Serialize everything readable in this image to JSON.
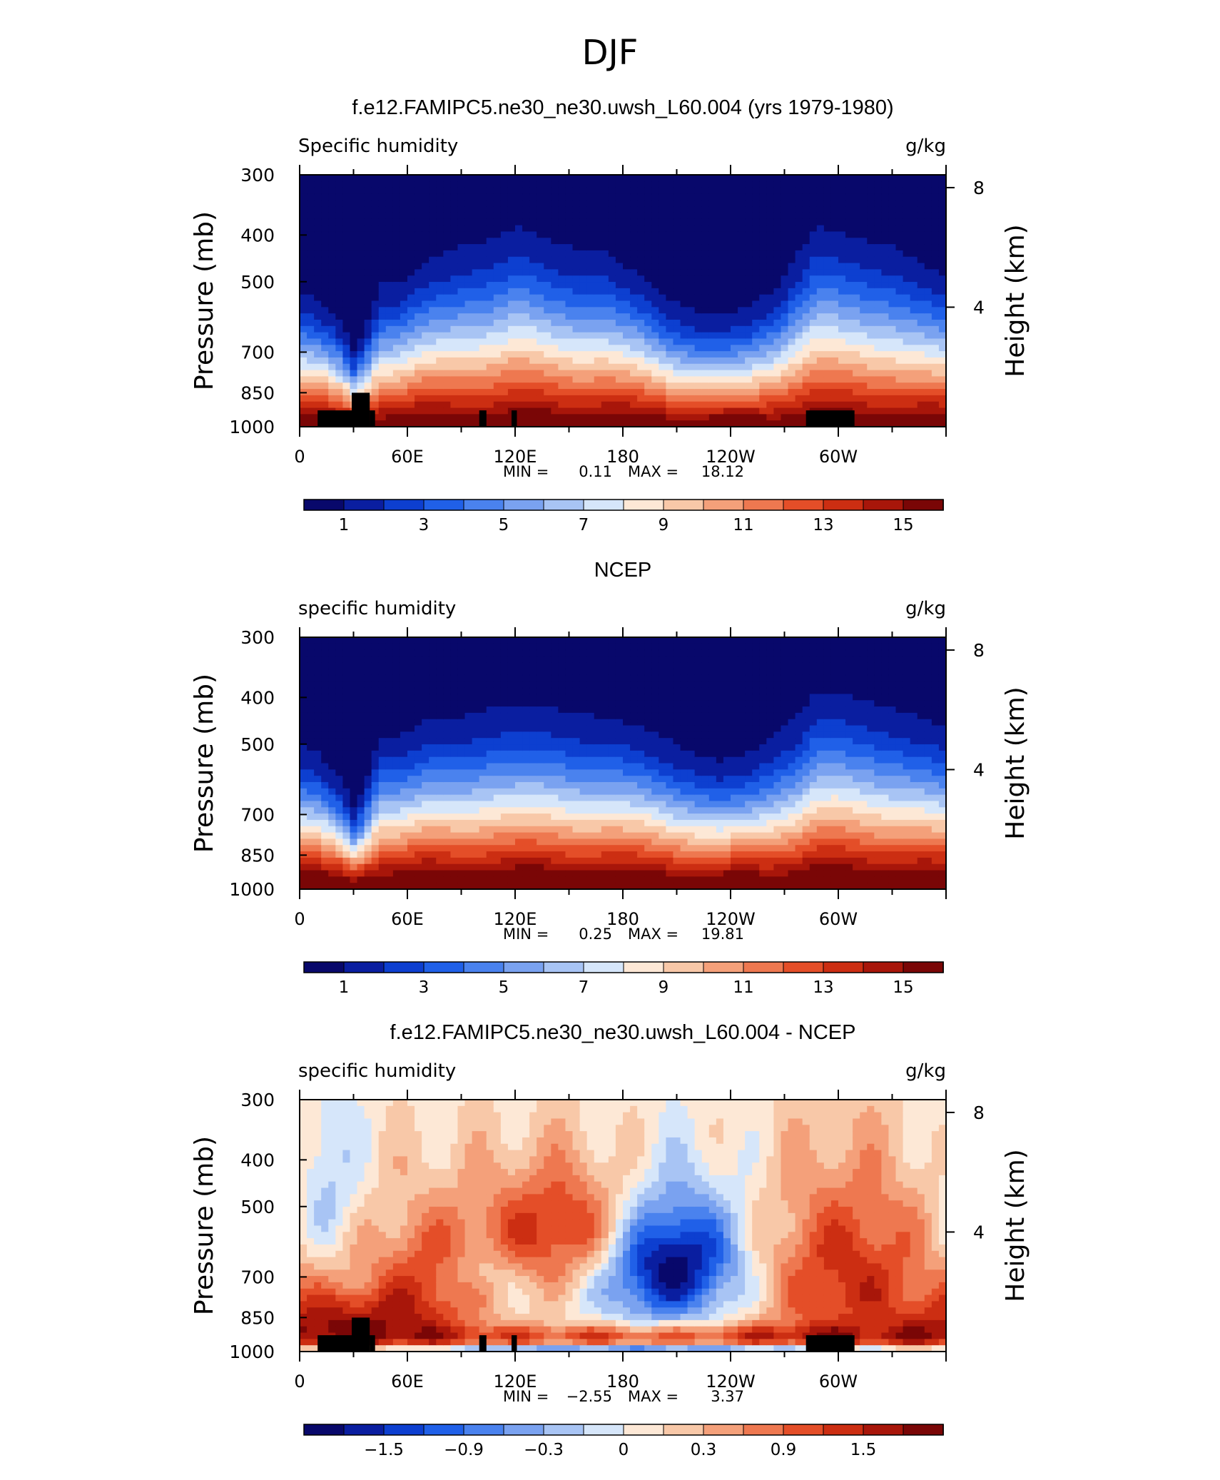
{
  "figure": {
    "title": "DJF"
  },
  "chart_data": [
    {
      "type": "heatmap",
      "title": "f.e12.FAMIPC5.ne30_ne30.uwsh_L60.004 (yrs 1979-1980)",
      "left_label": "Specific humidity",
      "units": "g/kg",
      "ylabel": "Pressure (mb)",
      "ylabel_right": "Height (km)",
      "y_ticks": [
        "300",
        "400",
        "500",
        "700",
        "850",
        "1000"
      ],
      "y_tick_values": [
        300,
        400,
        500,
        700,
        850,
        1000
      ],
      "y_right_ticks": [
        "8",
        "4"
      ],
      "y_right_values": [
        8,
        4
      ],
      "x_ticks": [
        "0",
        "60E",
        "120E",
        "180",
        "120W",
        "60W"
      ],
      "x_tick_values": [
        0,
        60,
        120,
        180,
        240,
        300
      ],
      "xlim": [
        0,
        360
      ],
      "ylim": [
        1000,
        300
      ],
      "stats": {
        "min_label": "MIN =",
        "min": "0.11",
        "max_label": "MAX =",
        "max": "18.12"
      },
      "colorbar_labels": [
        "1",
        "3",
        "5",
        "7",
        "9",
        "11",
        "13",
        "15"
      ],
      "colorbar_range": [
        0,
        16
      ],
      "levels_max": 16,
      "field_profile": {
        "lon": [
          0,
          10,
          20,
          25,
          30,
          35,
          40,
          45,
          55,
          70,
          90,
          100,
          110,
          120,
          130,
          140,
          150,
          170,
          190,
          205,
          220,
          235,
          250,
          265,
          280,
          285,
          290,
          300,
          310,
          330,
          345,
          360
        ],
        "moist_top": [
          540,
          560,
          600,
          640,
          700,
          660,
          580,
          520,
          520,
          470,
          440,
          430,
          420,
          400,
          410,
          430,
          440,
          450,
          500,
          560,
          590,
          600,
          580,
          530,
          440,
          410,
          400,
          410,
          420,
          440,
          470,
          500
        ],
        "scale": 1.0
      },
      "diff_field": null
    },
    {
      "type": "heatmap",
      "title": "NCEP",
      "left_label": "specific humidity",
      "units": "g/kg",
      "ylabel": "Pressure (mb)",
      "ylabel_right": "Height (km)",
      "y_ticks": [
        "300",
        "400",
        "500",
        "700",
        "850",
        "1000"
      ],
      "y_tick_values": [
        300,
        400,
        500,
        700,
        850,
        1000
      ],
      "y_right_ticks": [
        "8",
        "4"
      ],
      "y_right_values": [
        8,
        4
      ],
      "x_ticks": [
        "0",
        "60E",
        "120E",
        "180",
        "120W",
        "60W"
      ],
      "x_tick_values": [
        0,
        60,
        120,
        180,
        240,
        300
      ],
      "xlim": [
        0,
        360
      ],
      "ylim": [
        1000,
        300
      ],
      "stats": {
        "min_label": "MIN =",
        "min": "0.25",
        "max_label": "MAX =",
        "max": "19.81"
      },
      "colorbar_labels": [
        "1",
        "3",
        "5",
        "7",
        "9",
        "11",
        "13",
        "15"
      ],
      "colorbar_range": [
        0,
        16
      ],
      "levels_max": 16,
      "field_profile": {
        "lon": [
          0,
          10,
          20,
          25,
          30,
          35,
          40,
          45,
          55,
          70,
          90,
          100,
          110,
          120,
          130,
          140,
          150,
          170,
          190,
          205,
          220,
          235,
          250,
          265,
          280,
          285,
          290,
          300,
          310,
          330,
          345,
          360
        ],
        "moist_top": [
          520,
          540,
          590,
          630,
          690,
          640,
          560,
          500,
          500,
          470,
          460,
          450,
          440,
          440,
          440,
          440,
          450,
          460,
          480,
          510,
          540,
          560,
          540,
          500,
          450,
          420,
          410,
          410,
          420,
          440,
          460,
          480
        ],
        "scale": 1.05
      },
      "diff_field": null
    },
    {
      "type": "heatmap",
      "title": "f.e12.FAMIPC5.ne30_ne30.uwsh_L60.004 - NCEP",
      "left_label": "specific humidity",
      "units": "g/kg",
      "ylabel": "Pressure (mb)",
      "ylabel_right": "Height (km)",
      "y_ticks": [
        "300",
        "400",
        "500",
        "700",
        "850",
        "1000"
      ],
      "y_tick_values": [
        300,
        400,
        500,
        700,
        850,
        1000
      ],
      "y_right_ticks": [
        "8",
        "4"
      ],
      "y_right_values": [
        8,
        4
      ],
      "x_ticks": [
        "0",
        "60E",
        "120E",
        "180",
        "120W",
        "60W"
      ],
      "x_tick_values": [
        0,
        60,
        120,
        180,
        240,
        300
      ],
      "xlim": [
        0,
        360
      ],
      "ylim": [
        1000,
        300
      ],
      "stats": {
        "min_label": "MIN =",
        "min": "−2.55",
        "max_label": "MAX =",
        "max": "3.37"
      },
      "colorbar_labels": [
        "−1.5",
        "−0.9",
        "−0.3",
        "0",
        "0.3",
        "0.9",
        "1.5"
      ],
      "colorbar_range": [
        -2.1,
        2.1
      ],
      "levels_max": 2.1,
      "field_profile": null,
      "diff_field": {
        "blobs": [
          {
            "lon": 205,
            "p": 650,
            "amp": -2.4,
            "sx": 28,
            "sp": 140
          },
          {
            "lon": 150,
            "p": 560,
            "amp": 1.4,
            "sx": 35,
            "sp": 120
          },
          {
            "lon": 70,
            "p": 750,
            "amp": 1.1,
            "sx": 25,
            "sp": 180
          },
          {
            "lon": 305,
            "p": 700,
            "amp": 1.3,
            "sx": 35,
            "sp": 220
          },
          {
            "lon": 200,
            "p": 930,
            "amp": 1.2,
            "sx": 120,
            "sp": 40
          },
          {
            "lon": 20,
            "p": 880,
            "amp": 1.4,
            "sx": 30,
            "sp": 100
          },
          {
            "lon": 100,
            "p": 690,
            "amp": -0.5,
            "sx": 15,
            "sp": 60
          },
          {
            "lon": 15,
            "p": 450,
            "amp": -0.6,
            "sx": 12,
            "sp": 120
          },
          {
            "lon": 190,
            "p": 1000,
            "amp": -1.5,
            "sx": 200,
            "sp": 20
          }
        ]
      }
    }
  ],
  "topography": [
    {
      "lon0": 10,
      "lon1": 29,
      "p_top": 925
    },
    {
      "lon0": 29,
      "lon1": 39,
      "p_top": 850
    },
    {
      "lon0": 39,
      "lon1": 42,
      "p_top": 925
    },
    {
      "lon0": 100,
      "lon1": 104,
      "p_top": 925
    },
    {
      "lon0": 118,
      "lon1": 121,
      "p_top": 925
    },
    {
      "lon0": 282,
      "lon1": 309,
      "p_top": 925
    }
  ],
  "colors": {
    "palette": [
      "#08086b",
      "#0a1ea0",
      "#0d3fd0",
      "#2060e8",
      "#4a82ee",
      "#7aa2f0",
      "#a8c4f4",
      "#d6e6fa",
      "#fde8d6",
      "#f8c8a8",
      "#f4a07a",
      "#ee7850",
      "#e44e28",
      "#cc2e12",
      "#a8160a",
      "#7a0606"
    ]
  }
}
